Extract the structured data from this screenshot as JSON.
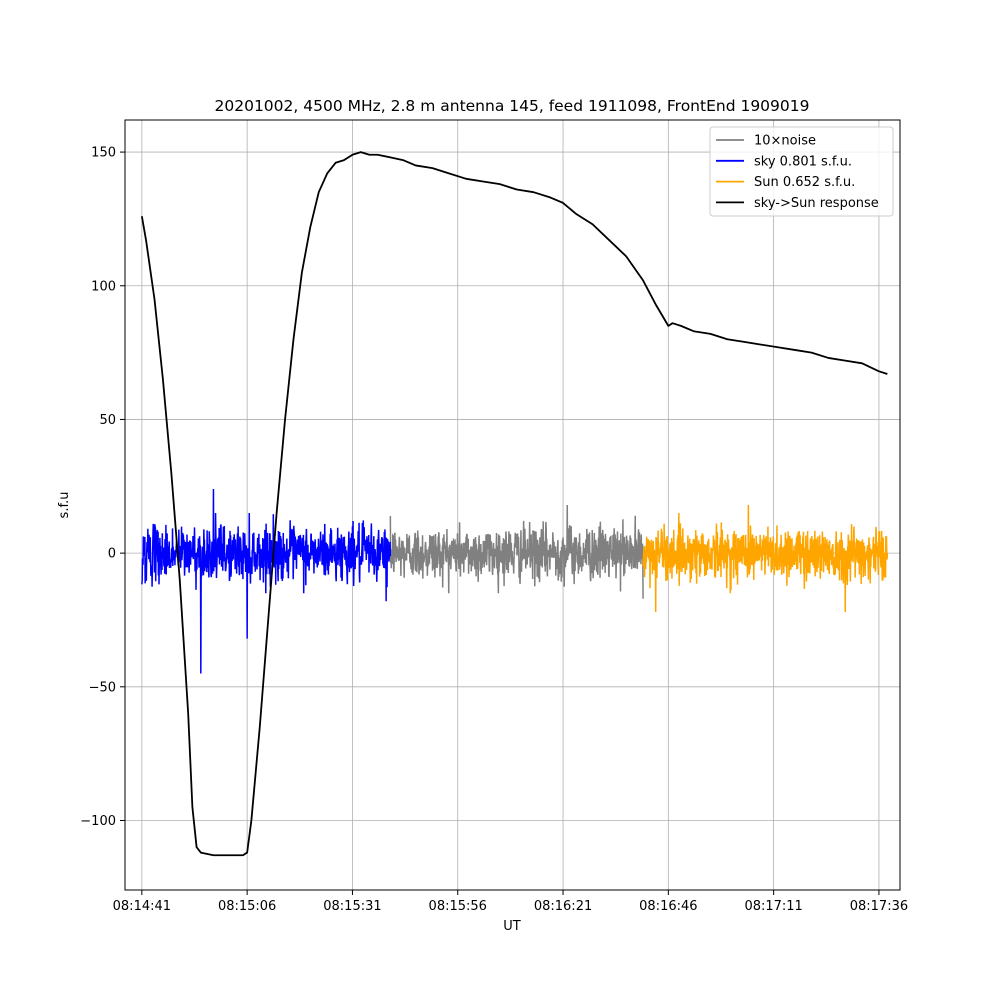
{
  "chart_data": {
    "type": "line",
    "title": "20201002, 4500 MHz, 2.8 m antenna 145, feed 1911098, FrontEnd 1909019",
    "xlabel": "UT",
    "ylabel": "s.f.u",
    "xlim": [
      "08:14:37",
      "08:17:41"
    ],
    "ylim": [
      -126,
      162
    ],
    "x_ticks": [
      "08:14:41",
      "08:15:06",
      "08:15:31",
      "08:15:56",
      "08:16:21",
      "08:16:46",
      "08:17:11",
      "08:17:36"
    ],
    "y_ticks": [
      -100,
      -50,
      0,
      50,
      100,
      150
    ],
    "y_tick_labels": [
      "−100",
      "−50",
      "0",
      "50",
      "100",
      "150"
    ],
    "grid": true,
    "legend_position": "top-right",
    "series": [
      {
        "name": "10×noise",
        "color": "#808080",
        "kind": "noise",
        "x_range": [
          "08:15:40",
          "08:16:40"
        ],
        "approx_sd": 5,
        "peaks": [
          [
            [
              "08:16:22"
            ],
            18
          ],
          [
            [
              "08:16:40"
            ],
            -17
          ]
        ]
      },
      {
        "name": "sky 0.801 s.f.u.",
        "color": "#0000ff",
        "kind": "noise",
        "x_range": [
          "08:14:41",
          "08:15:40"
        ],
        "approx_sd": 5,
        "peaks": [
          [
            [
              "08:14:55"
            ],
            -45
          ],
          [
            [
              "08:15:06"
            ],
            -32
          ],
          [
            [
              "08:14:58"
            ],
            24
          ],
          [
            [
              "08:15:39"
            ],
            -18
          ]
        ]
      },
      {
        "name": "Sun 0.652 s.f.u.",
        "color": "#ffa500",
        "kind": "noise",
        "x_range": [
          "08:16:40",
          "08:17:38"
        ],
        "approx_sd": 5,
        "peaks": [
          [
            [
              "08:17:28"
            ],
            -22
          ],
          [
            [
              "08:16:43"
            ],
            -22
          ],
          [
            [
              "08:17:05"
            ],
            18
          ]
        ]
      },
      {
        "name": "sky->Sun response",
        "color": "#000000",
        "kind": "line",
        "x": [
          "08:14:41",
          "08:14:42",
          "08:14:44",
          "08:14:46",
          "08:14:48",
          "08:14:50",
          "08:14:52",
          "08:14:53",
          "08:14:54",
          "08:14:55",
          "08:14:58",
          "08:15:01",
          "08:15:04",
          "08:15:05",
          "08:15:06",
          "08:15:07",
          "08:15:09",
          "08:15:11",
          "08:15:13",
          "08:15:15",
          "08:15:17",
          "08:15:19",
          "08:15:21",
          "08:15:23",
          "08:15:25",
          "08:15:27",
          "08:15:29",
          "08:15:31",
          "08:15:33",
          "08:15:35",
          "08:15:37",
          "08:15:40",
          "08:15:43",
          "08:15:46",
          "08:15:50",
          "08:15:54",
          "08:15:58",
          "08:16:02",
          "08:16:06",
          "08:16:10",
          "08:16:14",
          "08:16:18",
          "08:16:21",
          "08:16:24",
          "08:16:28",
          "08:16:32",
          "08:16:36",
          "08:16:40",
          "08:16:43",
          "08:16:46",
          "08:16:47",
          "08:16:49",
          "08:16:52",
          "08:16:56",
          "08:17:00",
          "08:17:04",
          "08:17:08",
          "08:17:12",
          "08:17:16",
          "08:17:20",
          "08:17:24",
          "08:17:28",
          "08:17:32",
          "08:17:36",
          "08:17:38"
        ],
        "y": [
          126,
          117,
          95,
          65,
          30,
          -10,
          -60,
          -95,
          -110,
          -112,
          -113,
          -113,
          -113,
          -113,
          -112,
          -100,
          -65,
          -25,
          15,
          50,
          80,
          105,
          122,
          135,
          142,
          146,
          147,
          149,
          150,
          149,
          149,
          148,
          147,
          145,
          144,
          142,
          140,
          139,
          138,
          136,
          135,
          133,
          131,
          127,
          123,
          117,
          111,
          102,
          93,
          85,
          86,
          85,
          83,
          82,
          80,
          79,
          78,
          77,
          76,
          75,
          73,
          72,
          71,
          68,
          67
        ]
      }
    ]
  }
}
